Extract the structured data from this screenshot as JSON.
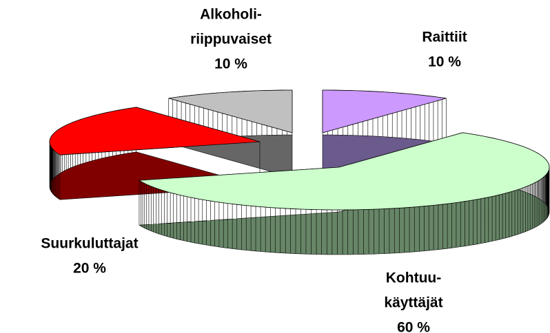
{
  "chart_data": {
    "type": "pie3d",
    "categories": [
      [
        "Raittiit"
      ],
      [
        "Kohtuu-",
        "käyttäjät"
      ],
      [
        "Suurkuluttajat"
      ],
      [
        "Alkoholi-",
        "riippuvaiset"
      ]
    ],
    "values": [
      10,
      60,
      20,
      10
    ],
    "value_labels": [
      "10 %",
      "60 %",
      "20 %",
      "10 %"
    ],
    "colors": [
      "#cc99ff",
      "#ccffcc",
      "#ff0000",
      "#c0c0c0"
    ],
    "side_colors": [
      "#6b5a8c",
      "#678667",
      "#800000",
      "#666666"
    ]
  }
}
